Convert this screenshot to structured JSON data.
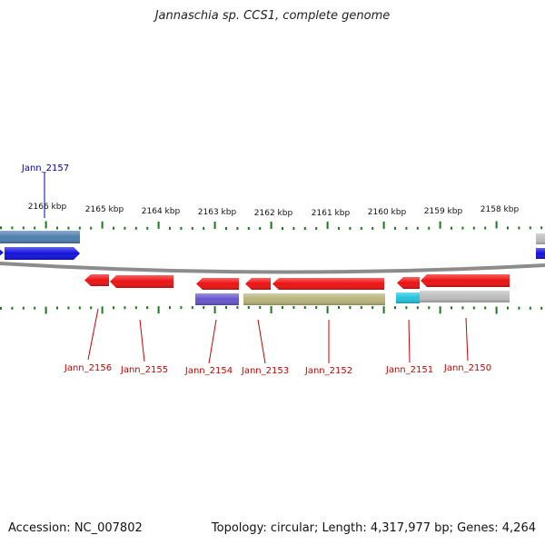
{
  "title": "Jannaschia sp. CCS1, complete genome",
  "accession_label": "Accession: NC_007802",
  "summary_label": "Topology: circular; Length: 4,317,977 bp; Genes: 4,264",
  "colors": {
    "ruler_tick": "#1a7a1a",
    "backbone": "#8c8c8c",
    "gene_red": "#ee1111",
    "gene_blue": "#1111dd",
    "gene_steel": "#4d7fae",
    "gene_purple": "#6655cc",
    "gene_olive": "#b9b37a",
    "gene_cyan": "#22c4dd",
    "gene_gray": "#bdbdbd",
    "label_red": "#cc0000",
    "label_blue": "#0000aa"
  },
  "ruler": [
    {
      "label": "2166 kbp"
    },
    {
      "label": "2165 kbp"
    },
    {
      "label": "2164 kbp"
    },
    {
      "label": "2163 kbp"
    },
    {
      "label": "2162 kbp"
    },
    {
      "label": "2161 kbp"
    },
    {
      "label": "2160 kbp"
    },
    {
      "label": "2159 kbp"
    },
    {
      "label": "2158 kbp"
    }
  ],
  "gene_labels": [
    {
      "name": "Jann_2157",
      "color": "blue"
    },
    {
      "name": "Jann_2156",
      "color": "red"
    },
    {
      "name": "Jann_2155",
      "color": "red"
    },
    {
      "name": "Jann_2154",
      "color": "red"
    },
    {
      "name": "Jann_2153",
      "color": "red"
    },
    {
      "name": "Jann_2152",
      "color": "red"
    },
    {
      "name": "Jann_2151",
      "color": "red"
    },
    {
      "name": "Jann_2150",
      "color": "red"
    }
  ]
}
